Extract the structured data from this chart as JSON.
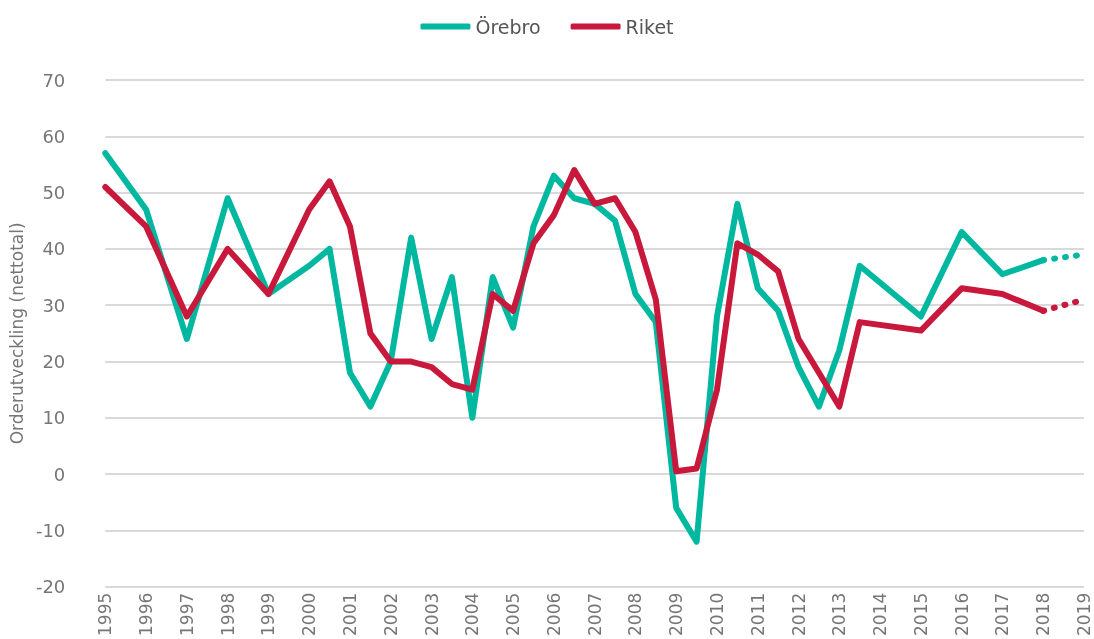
{
  "chart_data": {
    "type": "line",
    "ylabel": "Orderutveckling (nettotal)",
    "categories": [
      "1995",
      null,
      "1996",
      null,
      "1997",
      null,
      "1998",
      null,
      "1999",
      null,
      "2000",
      null,
      "2001",
      null,
      "2002",
      null,
      "2003",
      null,
      "2004",
      null,
      "2005",
      null,
      "2006",
      null,
      "2007",
      null,
      "2008",
      null,
      "2009",
      null,
      "2010",
      null,
      "2011",
      null,
      "2012",
      null,
      "2013",
      null,
      "2014",
      null,
      "2015",
      null,
      "2016",
      null,
      "2017",
      null,
      "2018",
      null,
      "2019"
    ],
    "series": [
      {
        "name": "Örebro",
        "color": "#00b8a0",
        "values": [
          57,
          null,
          47,
          null,
          24,
          null,
          49,
          null,
          32,
          null,
          37,
          40,
          18,
          12,
          20,
          42,
          24,
          35,
          10,
          35,
          26,
          44,
          53,
          49,
          48,
          45,
          32,
          27,
          -6,
          -12,
          28,
          48,
          33,
          29,
          19,
          12,
          22,
          37,
          null,
          null,
          28,
          null,
          43,
          null,
          35.5,
          null,
          38,
          null,
          null
        ]
      },
      {
        "name": "Riket",
        "color": "#c8193c",
        "values": [
          51,
          null,
          44,
          null,
          28,
          null,
          40,
          null,
          32,
          null,
          47,
          52,
          44,
          25,
          20,
          20,
          19,
          16,
          15,
          32,
          29,
          41,
          46,
          54,
          48,
          49,
          43,
          31,
          0.5,
          1,
          15,
          41,
          39,
          36,
          24,
          null,
          12,
          27,
          null,
          null,
          25.5,
          null,
          33,
          null,
          32,
          null,
          29,
          null,
          null
        ]
      },
      {
        "color": "#00b8a0",
        "line_style": "dotted",
        "values": [
          null,
          null,
          null,
          null,
          null,
          null,
          null,
          null,
          null,
          null,
          null,
          null,
          null,
          null,
          null,
          null,
          null,
          null,
          null,
          null,
          null,
          null,
          null,
          null,
          null,
          null,
          null,
          null,
          null,
          null,
          null,
          null,
          null,
          null,
          null,
          null,
          null,
          null,
          null,
          null,
          null,
          null,
          null,
          null,
          null,
          null,
          38,
          null,
          39
        ]
      },
      {
        "color": "#c8193c",
        "line_style": "dotted",
        "values": [
          null,
          null,
          null,
          null,
          null,
          null,
          null,
          null,
          null,
          null,
          null,
          null,
          null,
          null,
          null,
          null,
          null,
          null,
          null,
          null,
          null,
          null,
          null,
          null,
          null,
          null,
          null,
          null,
          null,
          null,
          null,
          null,
          null,
          null,
          null,
          null,
          null,
          null,
          null,
          null,
          null,
          null,
          null,
          null,
          null,
          null,
          29,
          null,
          31
        ]
      }
    ],
    "ylim": [
      -20,
      70
    ],
    "yticks": [
      -20,
      -10,
      0,
      10,
      20,
      30,
      40,
      50,
      60,
      70
    ],
    "grid": "y",
    "legend": "top",
    "marker": "none",
    "line_style": "solid"
  }
}
